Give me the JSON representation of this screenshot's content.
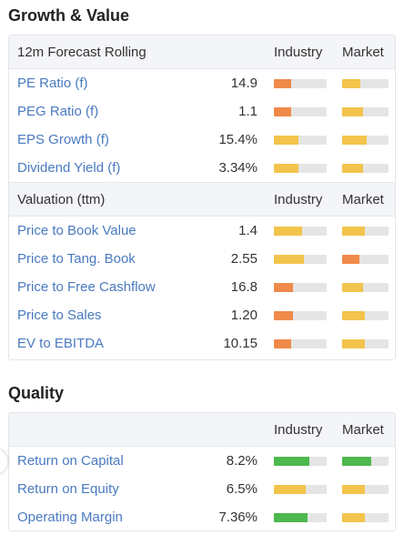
{
  "sections": {
    "growth": {
      "title": "Growth & Value",
      "forecast_header": {
        "label": "12m Forecast Rolling",
        "industry": "Industry",
        "market": "Market"
      },
      "forecast_rows": [
        {
          "label": "PE Ratio (f)",
          "value": "14.9",
          "industry": {
            "level": 0.33,
            "color": "#f08a4b"
          },
          "market": {
            "level": 0.4,
            "color": "#f2c44c"
          }
        },
        {
          "label": "PEG Ratio (f)",
          "value": "1.1",
          "industry": {
            "level": 0.33,
            "color": "#f08a4b"
          },
          "market": {
            "level": 0.45,
            "color": "#f2c44c"
          }
        },
        {
          "label": "EPS Growth (f)",
          "value": "15.4%",
          "industry": {
            "level": 0.46,
            "color": "#f2c44c"
          },
          "market": {
            "level": 0.53,
            "color": "#f2c44c"
          }
        },
        {
          "label": "Dividend Yield (f)",
          "value": "3.34%",
          "industry": {
            "level": 0.46,
            "color": "#f2c44c"
          },
          "market": {
            "level": 0.45,
            "color": "#f2c44c"
          }
        }
      ],
      "valuation_header": {
        "label": "Valuation (ttm)",
        "industry": "Industry",
        "market": "Market"
      },
      "valuation_rows": [
        {
          "label": "Price to Book Value",
          "value": "1.4",
          "industry": {
            "level": 0.53,
            "color": "#f2c44c"
          },
          "market": {
            "level": 0.49,
            "color": "#f2c44c"
          }
        },
        {
          "label": "Price to Tang. Book",
          "value": "2.55",
          "industry": {
            "level": 0.57,
            "color": "#f2c44c"
          },
          "market": {
            "level": 0.37,
            "color": "#f08a4b"
          }
        },
        {
          "label": "Price to Free Cashflow",
          "value": "16.8",
          "industry": {
            "level": 0.36,
            "color": "#f08a4b"
          },
          "market": {
            "level": 0.45,
            "color": "#f2c44c"
          }
        },
        {
          "label": "Price to Sales",
          "value": "1.20",
          "industry": {
            "level": 0.36,
            "color": "#f08a4b"
          },
          "market": {
            "level": 0.49,
            "color": "#f2c44c"
          }
        },
        {
          "label": "EV to EBITDA",
          "value": "10.15",
          "industry": {
            "level": 0.33,
            "color": "#f08a4b"
          },
          "market": {
            "level": 0.49,
            "color": "#f2c44c"
          }
        }
      ]
    },
    "quality": {
      "title": "Quality",
      "header": {
        "label": "",
        "industry": "Industry",
        "market": "Market"
      },
      "rows": [
        {
          "label": "Return on Capital",
          "value": "8.2%",
          "industry": {
            "level": 0.67,
            "color": "#4db84d"
          },
          "market": {
            "level": 0.63,
            "color": "#4db84d"
          }
        },
        {
          "label": "Return on Equity",
          "value": "6.5%",
          "industry": {
            "level": 0.6,
            "color": "#f2c44c"
          },
          "market": {
            "level": 0.49,
            "color": "#f2c44c"
          }
        },
        {
          "label": "Operating Margin",
          "value": "7.36%",
          "industry": {
            "level": 0.64,
            "color": "#4db84d"
          },
          "market": {
            "level": 0.49,
            "color": "#f2c44c"
          }
        }
      ]
    }
  }
}
